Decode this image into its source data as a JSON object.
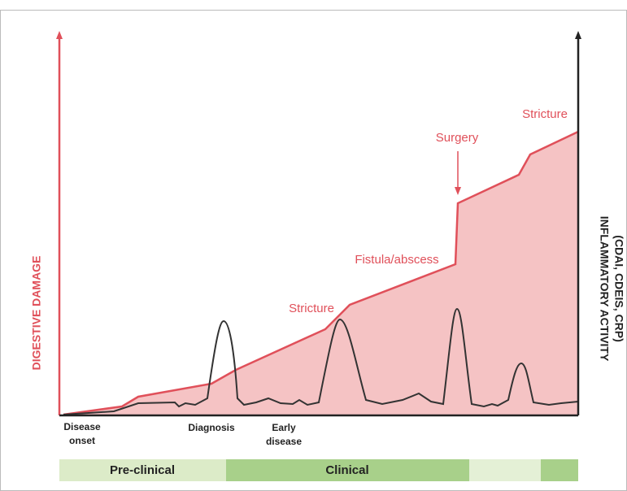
{
  "axes": {
    "left_title": "DIGESTIVE DAMAGE",
    "right_title": [
      "INFLAMMATORY ACTIVITY",
      "(CDAI, CDEIS, CRP)"
    ]
  },
  "annotations": [
    "Stricture",
    "Fistula/abscess",
    "Surgery",
    "Stricture"
  ],
  "timeline_labels": [
    [
      "Disease",
      "onset"
    ],
    [
      "Diagnosis"
    ],
    [
      "Early",
      "disease"
    ]
  ],
  "phases": [
    "Pre-clinical",
    "Clinical"
  ]
}
